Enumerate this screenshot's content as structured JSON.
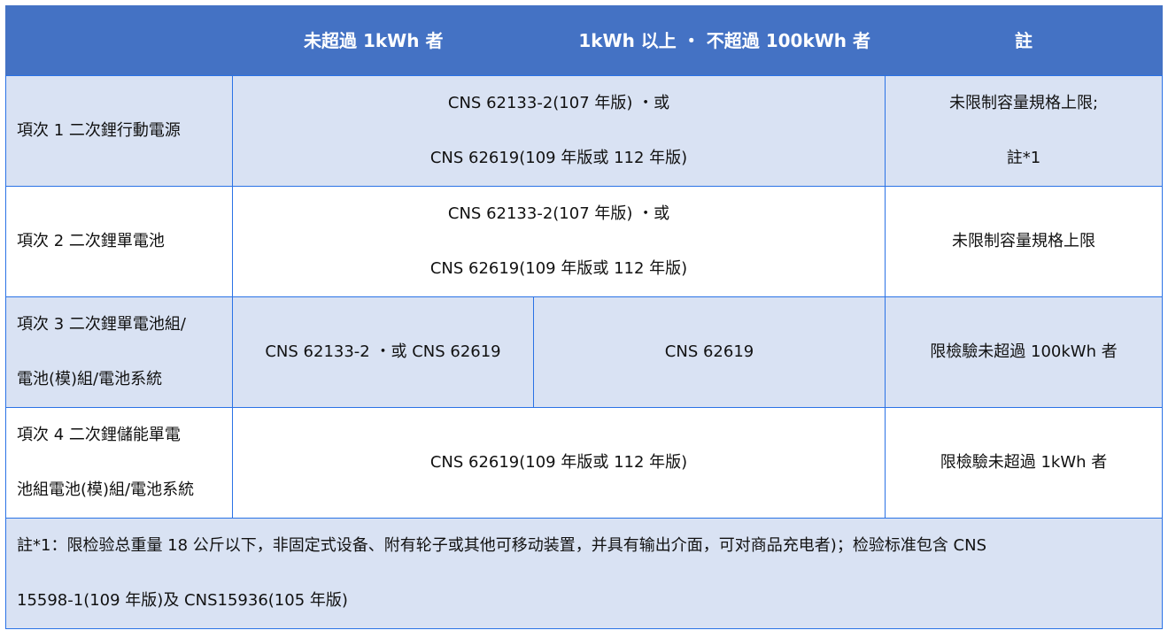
{
  "header": {
    "col1": "",
    "col2": "未超過 1kWh 者",
    "col3": "1kWh 以上 ・ 不超過 100kWh 者",
    "col4": "註"
  },
  "rows": [
    {
      "item": "項次 1  二次鋰行動電源",
      "standard_line1": "CNS 62133-2(107 年版) ・或",
      "standard_line2": "CNS 62619(109 年版或 112 年版)",
      "note_line1": "未限制容量規格上限;",
      "note_line2": "註*1"
    },
    {
      "item": "項次 2  二次鋰單電池",
      "standard_line1": "CNS 62133-2(107 年版) ・或",
      "standard_line2": "CNS 62619(109 年版或 112 年版)",
      "note": "未限制容量規格上限"
    },
    {
      "item_line1": "項次  3  二次鋰單電池組/",
      "item_line2": "電池(模)組/電池系統",
      "standard_under_1kwh": "CNS 62133-2 ・或  CNS 62619",
      "standard_1_to_100kwh": "CNS 62619",
      "note": "限檢驗未超過 100kWh 者"
    },
    {
      "item_line1": "項次  4  二次鋰儲能單電",
      "item_line2": "池組電池(模)組/電池系統",
      "standard": "CNS 62619(109 年版或 112 年版)",
      "note": "限檢驗未超過 1kWh 者"
    }
  ],
  "footnote": {
    "line1": "註*1：限检验总重量  18  公斤以下，非固定式设备、附有轮子或其他可移动装置，并具有输出介面，可对商品充电者)；检验标准包含  CNS",
    "line2": "15598-1(109  年版)及 CNS15936(105  年版)"
  },
  "colors": {
    "header_bg": "#4472c4",
    "shade_bg": "#d9e2f3",
    "border": "#2a72e6"
  }
}
